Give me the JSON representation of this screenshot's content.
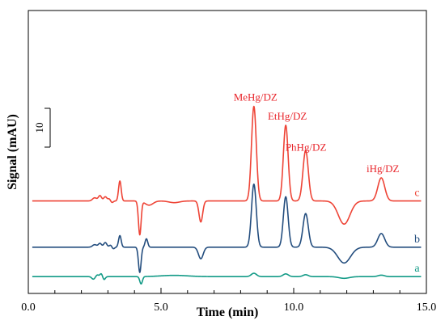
{
  "chart_data": {
    "type": "line",
    "title": "",
    "xlabel": "Time (min)",
    "ylabel": "Signal (mAU)",
    "xlim": [
      0,
      15
    ],
    "x_ticks": [
      "0.0",
      "5.0",
      "10.0",
      "15.0"
    ],
    "y_ticks_shown": false,
    "scale_bar": {
      "label": "10",
      "value": 10
    },
    "colors": {
      "a": "#129a86",
      "b": "#234d7e",
      "c": "#ee4436",
      "peak_labels": "#e8242a"
    },
    "peak_labels": [
      {
        "text": "MeHg/DZ",
        "x": 8.5
      },
      {
        "text": "EtHg/DZ",
        "x": 9.7
      },
      {
        "text": "PhHg/DZ",
        "x": 10.4
      },
      {
        "text": "iHg/DZ",
        "x": 13.3
      }
    ],
    "series": [
      {
        "name": "c",
        "baseline": 44,
        "features": [
          {
            "x": 2.5,
            "dy": 1.5,
            "w": 0.08
          },
          {
            "x": 2.7,
            "dy": 2.5,
            "w": 0.06
          },
          {
            "x": 2.9,
            "dy": 2.0,
            "w": 0.06
          },
          {
            "x": 3.05,
            "dy": 1.0,
            "w": 0.05
          },
          {
            "x": 3.15,
            "dy": -0.8,
            "w": 0.05
          },
          {
            "x": 3.45,
            "dy": 9.5,
            "w": 0.05
          },
          {
            "x": 4.2,
            "dy": -16,
            "w": 0.05
          },
          {
            "x": 4.55,
            "dy": -2.0,
            "w": 0.15
          },
          {
            "x": 5.5,
            "dy": -0.8,
            "w": 0.2
          },
          {
            "x": 6.5,
            "dy": -10,
            "w": 0.07
          },
          {
            "x": 8.5,
            "dy": 45,
            "w": 0.09
          },
          {
            "x": 9.7,
            "dy": 36,
            "w": 0.09
          },
          {
            "x": 10.45,
            "dy": 24,
            "w": 0.1
          },
          {
            "x": 11.9,
            "dy": -11,
            "w": 0.22
          },
          {
            "x": 13.3,
            "dy": 11,
            "w": 0.13
          }
        ]
      },
      {
        "name": "b",
        "baseline": 22,
        "features": [
          {
            "x": 2.5,
            "dy": 1.2,
            "w": 0.08
          },
          {
            "x": 2.7,
            "dy": 1.8,
            "w": 0.06
          },
          {
            "x": 2.9,
            "dy": 2.2,
            "w": 0.06
          },
          {
            "x": 3.1,
            "dy": 1.0,
            "w": 0.05
          },
          {
            "x": 3.2,
            "dy": -0.8,
            "w": 0.05
          },
          {
            "x": 3.45,
            "dy": 5.5,
            "w": 0.05
          },
          {
            "x": 4.2,
            "dy": -12,
            "w": 0.05
          },
          {
            "x": 4.45,
            "dy": 4.0,
            "w": 0.05
          },
          {
            "x": 6.5,
            "dy": -5.5,
            "w": 0.09
          },
          {
            "x": 8.5,
            "dy": 30,
            "w": 0.09
          },
          {
            "x": 9.7,
            "dy": 24,
            "w": 0.09
          },
          {
            "x": 10.45,
            "dy": 16,
            "w": 0.1
          },
          {
            "x": 11.9,
            "dy": -7.5,
            "w": 0.24
          },
          {
            "x": 13.3,
            "dy": 6.5,
            "w": 0.13
          }
        ]
      },
      {
        "name": "a",
        "baseline": 8,
        "features": [
          {
            "x": 2.45,
            "dy": -1.2,
            "w": 0.06
          },
          {
            "x": 2.6,
            "dy": 0.8,
            "w": 0.05
          },
          {
            "x": 2.75,
            "dy": 1.5,
            "w": 0.05
          },
          {
            "x": 2.85,
            "dy": -1.5,
            "w": 0.05
          },
          {
            "x": 4.25,
            "dy": -3.5,
            "w": 0.05
          },
          {
            "x": 5.5,
            "dy": 0.6,
            "w": 0.5
          },
          {
            "x": 8.5,
            "dy": 1.6,
            "w": 0.1
          },
          {
            "x": 9.7,
            "dy": 1.3,
            "w": 0.1
          },
          {
            "x": 10.45,
            "dy": 0.9,
            "w": 0.1
          },
          {
            "x": 11.9,
            "dy": -0.8,
            "w": 0.2
          },
          {
            "x": 13.3,
            "dy": 0.7,
            "w": 0.12
          }
        ]
      }
    ]
  }
}
